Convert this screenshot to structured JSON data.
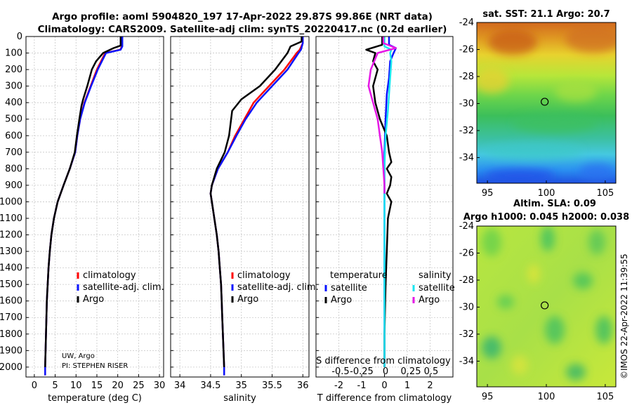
{
  "titles": {
    "line1": "Argo profile: aoml 5904820_197 17-Apr-2022 29.87S 99.86E (NRT data)",
    "line2": "Climatology: CARS2009. Satellite-adj clim: synTS_20220417.nc (0.2d earlier)"
  },
  "colors": {
    "red": "#ff0000",
    "blue": "#0a14ff",
    "black": "#000000",
    "cyan": "#19e6f0",
    "magenta": "#e619e6"
  },
  "chart_data": [
    {
      "type": "line",
      "id": "temperature",
      "xlabel": "temperature (deg C)",
      "xlim": [
        -2,
        31
      ],
      "xticks": [
        0,
        5,
        10,
        15,
        20,
        25,
        30
      ],
      "ylim": [
        2060,
        0
      ],
      "yticks": [
        0,
        100,
        200,
        300,
        400,
        500,
        600,
        700,
        800,
        900,
        1000,
        1100,
        1200,
        1300,
        1400,
        1500,
        1600,
        1700,
        1800,
        1900,
        2000
      ],
      "legend": [
        "climatology",
        "satellite-adj. clim.",
        "Argo"
      ],
      "annotation": [
        "UW, Argo",
        "PI: STEPHEN RISER"
      ],
      "series": [
        {
          "name": "climatology",
          "color": "red",
          "points": [
            [
              21.0,
              0
            ],
            [
              21.0,
              60
            ],
            [
              20.6,
              80
            ],
            [
              17,
              100
            ],
            [
              15,
              200
            ],
            [
              13.5,
              300
            ],
            [
              12,
              400
            ],
            [
              11,
              500
            ],
            [
              10.3,
              600
            ],
            [
              9.8,
              700
            ],
            [
              8.5,
              800
            ],
            [
              7,
              900
            ],
            [
              5.6,
              1000
            ],
            [
              4.7,
              1100
            ],
            [
              4.1,
              1200
            ],
            [
              3.7,
              1300
            ],
            [
              3.4,
              1400
            ],
            [
              3.2,
              1500
            ],
            [
              3.0,
              1600
            ],
            [
              2.9,
              1700
            ],
            [
              2.8,
              1800
            ],
            [
              2.7,
              1900
            ],
            [
              2.6,
              2000
            ],
            [
              2.6,
              2050
            ]
          ]
        },
        {
          "name": "satellite-adj. clim.",
          "color": "blue",
          "points": [
            [
              21.1,
              0
            ],
            [
              21.1,
              60
            ],
            [
              20.7,
              80
            ],
            [
              17.2,
              100
            ],
            [
              15.2,
              200
            ],
            [
              13.6,
              300
            ],
            [
              12.1,
              400
            ],
            [
              11,
              500
            ],
            [
              10.3,
              600
            ],
            [
              9.8,
              700
            ],
            [
              8.5,
              800
            ],
            [
              7,
              900
            ],
            [
              5.6,
              1000
            ],
            [
              4.7,
              1100
            ],
            [
              4.1,
              1200
            ],
            [
              3.7,
              1300
            ],
            [
              3.4,
              1400
            ],
            [
              3.2,
              1500
            ],
            [
              3.0,
              1600
            ],
            [
              2.9,
              1700
            ],
            [
              2.8,
              1800
            ],
            [
              2.7,
              1900
            ],
            [
              2.6,
              2000
            ],
            [
              2.6,
              2050
            ]
          ]
        },
        {
          "name": "Argo",
          "color": "black",
          "points": [
            [
              20.7,
              0
            ],
            [
              20.7,
              55
            ],
            [
              19,
              70
            ],
            [
              16.5,
              100
            ],
            [
              14.8,
              150
            ],
            [
              13.8,
              200
            ],
            [
              12.7,
              300
            ],
            [
              11.7,
              380
            ],
            [
              11.3,
              420
            ],
            [
              10.8,
              500
            ],
            [
              10.2,
              600
            ],
            [
              9.7,
              700
            ],
            [
              8.5,
              800
            ],
            [
              7,
              900
            ],
            [
              5.6,
              1000
            ],
            [
              4.7,
              1100
            ],
            [
              4.1,
              1200
            ],
            [
              3.7,
              1300
            ],
            [
              3.4,
              1400
            ],
            [
              3.2,
              1500
            ],
            [
              3.0,
              1600
            ],
            [
              2.9,
              1700
            ],
            [
              2.8,
              1800
            ],
            [
              2.7,
              1900
            ],
            [
              2.6,
              2000
            ]
          ]
        }
      ]
    },
    {
      "type": "line",
      "id": "salinity",
      "xlabel": "salinity",
      "xlim": [
        33.85,
        36.1
      ],
      "xticks": [
        34,
        34.5,
        35,
        35.5,
        36
      ],
      "ylim": [
        2060,
        0
      ],
      "legend": [
        "climatology",
        "satellite-adj. clim.",
        "Argo"
      ],
      "series": [
        {
          "name": "climatology",
          "color": "red",
          "points": [
            [
              36.0,
              0
            ],
            [
              36.0,
              40
            ],
            [
              35.95,
              80
            ],
            [
              35.9,
              100
            ],
            [
              35.7,
              200
            ],
            [
              35.45,
              300
            ],
            [
              35.2,
              400
            ],
            [
              35.05,
              500
            ],
            [
              34.9,
              600
            ],
            [
              34.78,
              700
            ],
            [
              34.62,
              800
            ],
            [
              34.52,
              900
            ],
            [
              34.5,
              950
            ],
            [
              34.52,
              1000
            ],
            [
              34.56,
              1100
            ],
            [
              34.6,
              1200
            ],
            [
              34.63,
              1300
            ],
            [
              34.65,
              1400
            ],
            [
              34.67,
              1500
            ],
            [
              34.68,
              1600
            ],
            [
              34.69,
              1700
            ],
            [
              34.7,
              1800
            ],
            [
              34.71,
              1900
            ],
            [
              34.72,
              2000
            ],
            [
              34.72,
              2050
            ]
          ]
        },
        {
          "name": "satellite-adj. clim.",
          "color": "blue",
          "points": [
            [
              36.0,
              0
            ],
            [
              36.0,
              40
            ],
            [
              35.97,
              80
            ],
            [
              35.93,
              100
            ],
            [
              35.75,
              200
            ],
            [
              35.5,
              300
            ],
            [
              35.25,
              400
            ],
            [
              35.07,
              500
            ],
            [
              34.92,
              600
            ],
            [
              34.78,
              700
            ],
            [
              34.62,
              800
            ],
            [
              34.52,
              900
            ],
            [
              34.5,
              950
            ],
            [
              34.52,
              1000
            ],
            [
              34.56,
              1100
            ],
            [
              34.6,
              1200
            ],
            [
              34.63,
              1300
            ],
            [
              34.65,
              1400
            ],
            [
              34.67,
              1500
            ],
            [
              34.68,
              1600
            ],
            [
              34.69,
              1700
            ],
            [
              34.7,
              1800
            ],
            [
              34.71,
              1900
            ],
            [
              34.72,
              2000
            ],
            [
              34.72,
              2050
            ]
          ]
        },
        {
          "name": "Argo",
          "color": "black",
          "points": [
            [
              35.98,
              0
            ],
            [
              35.98,
              30
            ],
            [
              35.8,
              60
            ],
            [
              35.75,
              100
            ],
            [
              35.55,
              200
            ],
            [
              35.3,
              300
            ],
            [
              35.0,
              380
            ],
            [
              34.85,
              450
            ],
            [
              34.8,
              600
            ],
            [
              34.73,
              700
            ],
            [
              34.6,
              800
            ],
            [
              34.52,
              900
            ],
            [
              34.5,
              950
            ],
            [
              34.52,
              1000
            ],
            [
              34.56,
              1100
            ],
            [
              34.6,
              1200
            ],
            [
              34.63,
              1300
            ],
            [
              34.65,
              1400
            ],
            [
              34.67,
              1500
            ],
            [
              34.68,
              1600
            ],
            [
              34.69,
              1700
            ],
            [
              34.7,
              1800
            ],
            [
              34.71,
              1900
            ],
            [
              34.72,
              2000
            ]
          ]
        }
      ]
    },
    {
      "type": "line",
      "id": "difference",
      "xlabel": "T difference from climatology",
      "xlabel2": "S difference from climatology",
      "xlim": [
        -3,
        3
      ],
      "xticks": [
        -2,
        -1,
        0,
        1,
        2
      ],
      "xticks2": [
        "-0.5",
        "-0.25",
        "0",
        "0.25",
        "0.5"
      ],
      "ylim": [
        2060,
        0
      ],
      "legend_left_title": "temperature",
      "legend_right_title": "salinity",
      "legend_left": [
        "satellite",
        "Argo"
      ],
      "legend_right": [
        "satellite",
        "Argo"
      ],
      "series": [
        {
          "name": "T satellite",
          "color": "blue",
          "points": [
            [
              0.2,
              0
            ],
            [
              0.2,
              50
            ],
            [
              0.5,
              70
            ],
            [
              0.4,
              100
            ],
            [
              0.25,
              150
            ],
            [
              0.2,
              250
            ],
            [
              0.1,
              350
            ],
            [
              0.05,
              500
            ],
            [
              0,
              700
            ],
            [
              0,
              1000
            ],
            [
              0,
              2000
            ]
          ]
        },
        {
          "name": "T Argo",
          "color": "black",
          "points": [
            [
              -0.1,
              0
            ],
            [
              -0.1,
              50
            ],
            [
              -0.8,
              80
            ],
            [
              -0.4,
              100
            ],
            [
              -0.5,
              150
            ],
            [
              -0.3,
              200
            ],
            [
              -0.5,
              300
            ],
            [
              -0.4,
              400
            ],
            [
              -0.2,
              500
            ],
            [
              0.1,
              600
            ],
            [
              0.2,
              700
            ],
            [
              0.3,
              760
            ],
            [
              0.1,
              800
            ],
            [
              0.3,
              850
            ],
            [
              0.25,
              900
            ],
            [
              0.1,
              950
            ],
            [
              0.3,
              1000
            ],
            [
              0.15,
              1100
            ],
            [
              0.1,
              1300
            ],
            [
              0.05,
              1500
            ],
            [
              0,
              1800
            ],
            [
              0,
              2000
            ]
          ]
        },
        {
          "name": "S satellite",
          "color": "cyan",
          "points": [
            [
              0.0,
              0
            ],
            [
              0.0,
              60
            ],
            [
              0.3,
              80
            ],
            [
              0.25,
              100
            ],
            [
              0.3,
              150
            ],
            [
              0.25,
              250
            ],
            [
              0.2,
              350
            ],
            [
              0.15,
              450
            ],
            [
              0.05,
              600
            ],
            [
              0,
              800
            ],
            [
              0,
              2000
            ]
          ]
        },
        {
          "name": "S Argo",
          "color": "magenta",
          "points": [
            [
              -0.05,
              0
            ],
            [
              -0.05,
              40
            ],
            [
              0.5,
              70
            ],
            [
              -0.3,
              100
            ],
            [
              -0.6,
              200
            ],
            [
              -0.7,
              300
            ],
            [
              -0.5,
              400
            ],
            [
              -0.3,
              500
            ],
            [
              -0.2,
              600
            ],
            [
              -0.1,
              700
            ],
            [
              -0.05,
              800
            ],
            [
              0,
              900
            ],
            [
              0,
              950
            ]
          ]
        }
      ]
    },
    {
      "type": "heatmap",
      "id": "sst-map",
      "title": "sat. SST: 21.1 Argo: 20.7",
      "xlim": [
        94.1,
        105.9
      ],
      "ylim": [
        -35.9,
        -24
      ],
      "xticks": [
        95,
        100,
        105
      ],
      "yticks": [
        -24,
        -26,
        -28,
        -30,
        -32,
        -34
      ],
      "float_position": [
        99.86,
        -29.87
      ]
    },
    {
      "type": "heatmap",
      "id": "sla-map",
      "title": "Altim. SLA: 0.09",
      "subtitle": "Argo h1000: 0.045 h2000: 0.038",
      "xlim": [
        94.1,
        105.9
      ],
      "ylim": [
        -35.9,
        -24
      ],
      "xticks": [
        95,
        100,
        105
      ],
      "yticks": [
        -24,
        -26,
        -28,
        -30,
        -32,
        -34
      ],
      "float_position": [
        99.86,
        -29.87
      ]
    }
  ],
  "credit": "©IMOS 22-Apr-2022 11:39:55"
}
